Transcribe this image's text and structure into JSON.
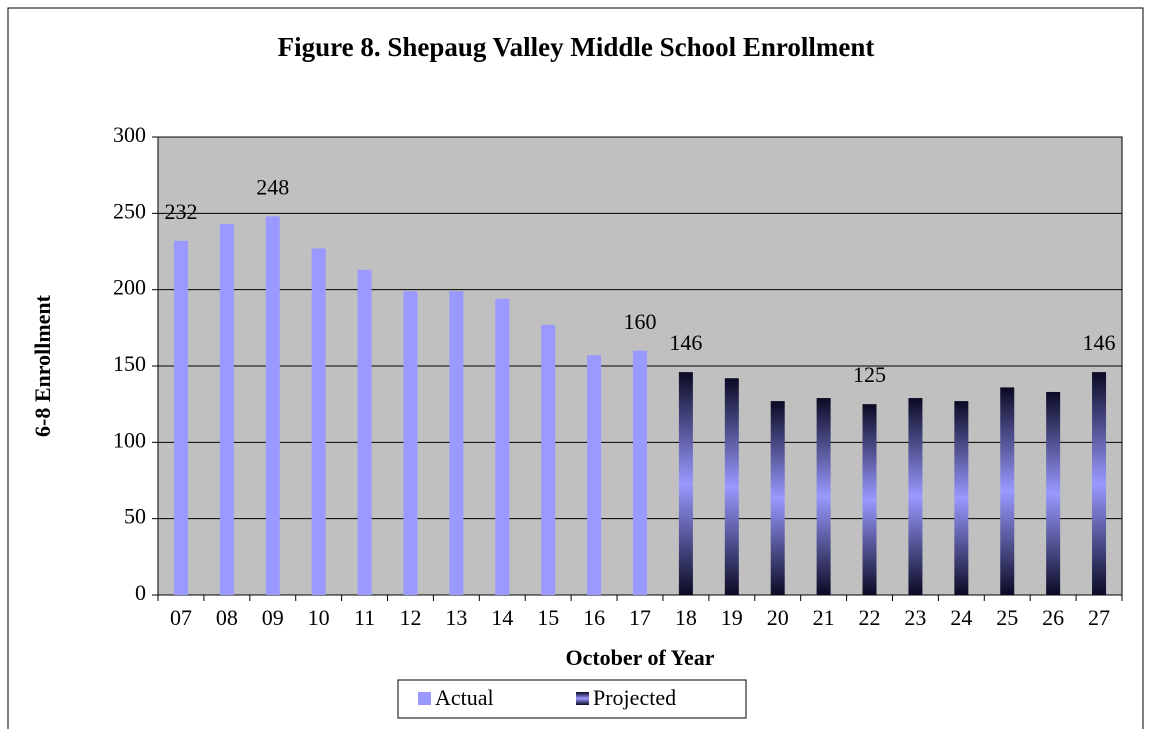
{
  "chart_data": {
    "type": "bar",
    "title": "Figure 8. Shepaug Valley Middle School Enrollment",
    "x_label": "October of Year",
    "y_label": "6-8 Enrollment",
    "categories": [
      "07",
      "08",
      "09",
      "10",
      "11",
      "12",
      "13",
      "14",
      "15",
      "16",
      "17",
      "18",
      "19",
      "20",
      "21",
      "22",
      "23",
      "24",
      "25",
      "26",
      "27"
    ],
    "series": [
      {
        "name": "Actual",
        "color": "#9999ff",
        "values": [
          232,
          243,
          248,
          227,
          213,
          199,
          199,
          194,
          177,
          157,
          160,
          null,
          null,
          null,
          null,
          null,
          null,
          null,
          null,
          null,
          null
        ],
        "value_labels": [
          232,
          null,
          248,
          null,
          null,
          null,
          null,
          null,
          null,
          null,
          160,
          null,
          null,
          null,
          null,
          null,
          null,
          null,
          null,
          null,
          null
        ]
      },
      {
        "name": "Projected",
        "color": "#0a0a24",
        "values": [
          null,
          null,
          null,
          null,
          null,
          null,
          null,
          null,
          null,
          null,
          null,
          146,
          142,
          127,
          129,
          125,
          129,
          127,
          136,
          133,
          146
        ],
        "value_labels": [
          null,
          null,
          null,
          null,
          null,
          null,
          null,
          null,
          null,
          null,
          null,
          146,
          null,
          null,
          null,
          125,
          null,
          null,
          null,
          null,
          146
        ]
      }
    ],
    "ylim": [
      0,
      300
    ],
    "yticks": [
      0,
      50,
      100,
      150,
      200,
      250,
      300
    ],
    "grid": true,
    "plot_background": "#c0c0c0",
    "legend": "bottom"
  }
}
